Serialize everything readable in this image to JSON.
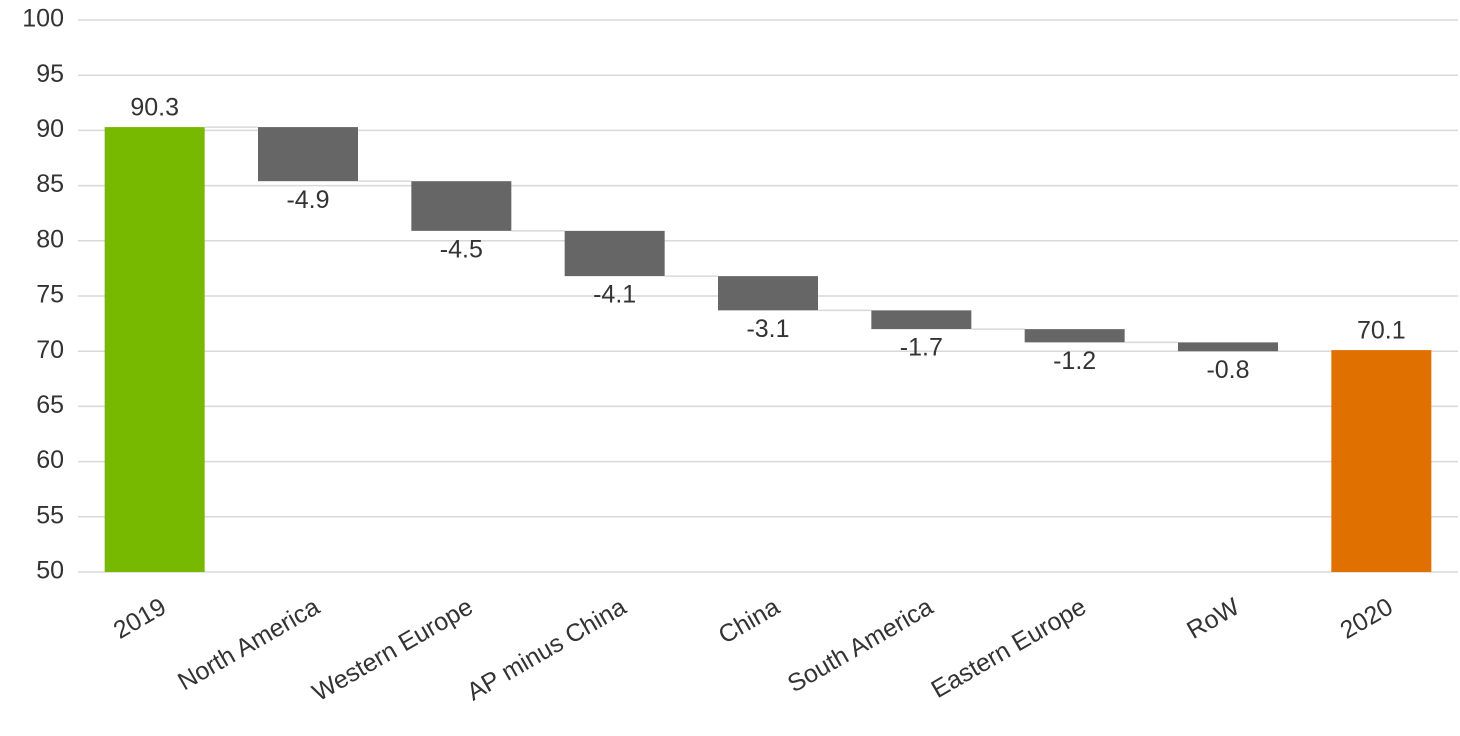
{
  "chart_data": {
    "type": "waterfall",
    "categories": [
      "2019",
      "North America",
      "Western Europe",
      "AP minus China",
      "China",
      "South America",
      "Eastern Europe",
      "RoW",
      "2020"
    ],
    "values": [
      90.3,
      -4.9,
      -4.5,
      -4.1,
      -3.1,
      -1.7,
      -1.2,
      -0.8,
      70.1
    ],
    "measure": [
      "absolute",
      "relative",
      "relative",
      "relative",
      "relative",
      "relative",
      "relative",
      "relative",
      "total"
    ],
    "colors": [
      "#76b900",
      "#666666",
      "#666666",
      "#666666",
      "#666666",
      "#666666",
      "#666666",
      "#666666",
      "#e07000"
    ],
    "ylim": [
      50,
      100
    ],
    "yticks": [
      50,
      55,
      60,
      65,
      70,
      75,
      80,
      85,
      90,
      95,
      100
    ],
    "grid": true
  }
}
